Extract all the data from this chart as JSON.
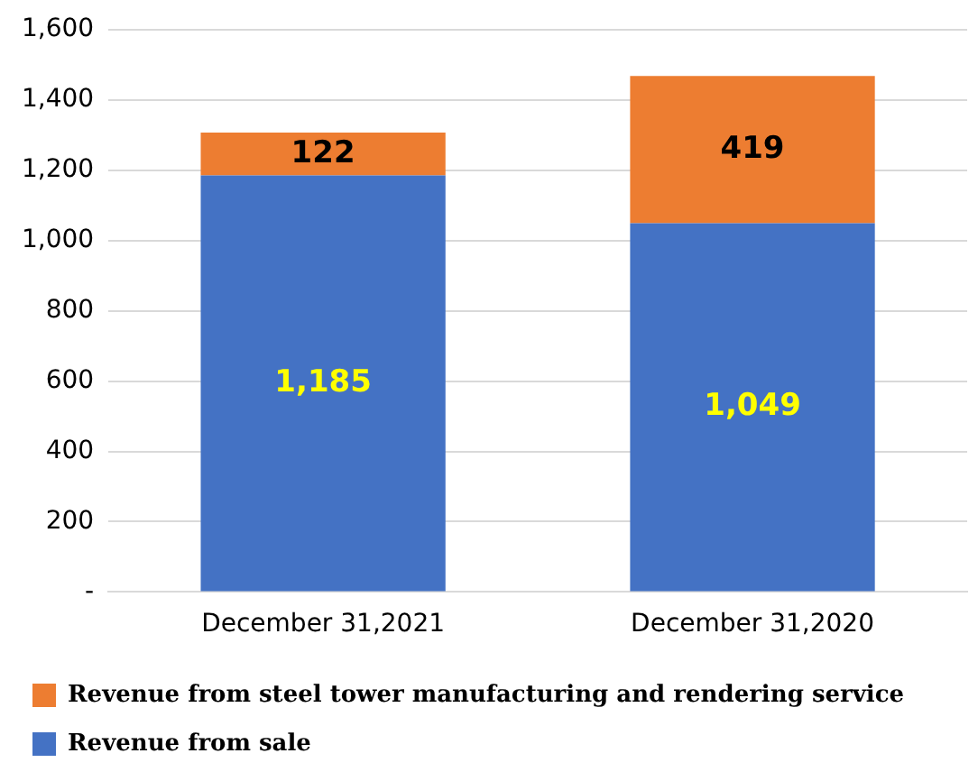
{
  "chart_data": {
    "type": "bar",
    "stacked": true,
    "categories": [
      "December 31,2021",
      "December 31,2020"
    ],
    "series": [
      {
        "name": "Revenue from sale",
        "color": "#4472c4",
        "values": [
          1185,
          1049
        ],
        "value_labels": [
          "1,185",
          "1,049"
        ]
      },
      {
        "name": "Revenue from steel tower manufacturing and rendering service",
        "color": "#ed7d31",
        "values": [
          122,
          419
        ],
        "value_labels": [
          "122",
          "419"
        ]
      }
    ],
    "ylim": [
      0,
      1600
    ],
    "yticks": [
      {
        "value": 0,
        "label": "-"
      },
      200,
      400,
      600,
      800,
      {
        "value": 1000,
        "label": "1,000"
      },
      {
        "value": 1200,
        "label": "1,200"
      },
      {
        "value": 1400,
        "label": "1,400"
      },
      {
        "value": 1600,
        "label": "1,600"
      }
    ],
    "grid": "y",
    "legend": "bottom"
  }
}
